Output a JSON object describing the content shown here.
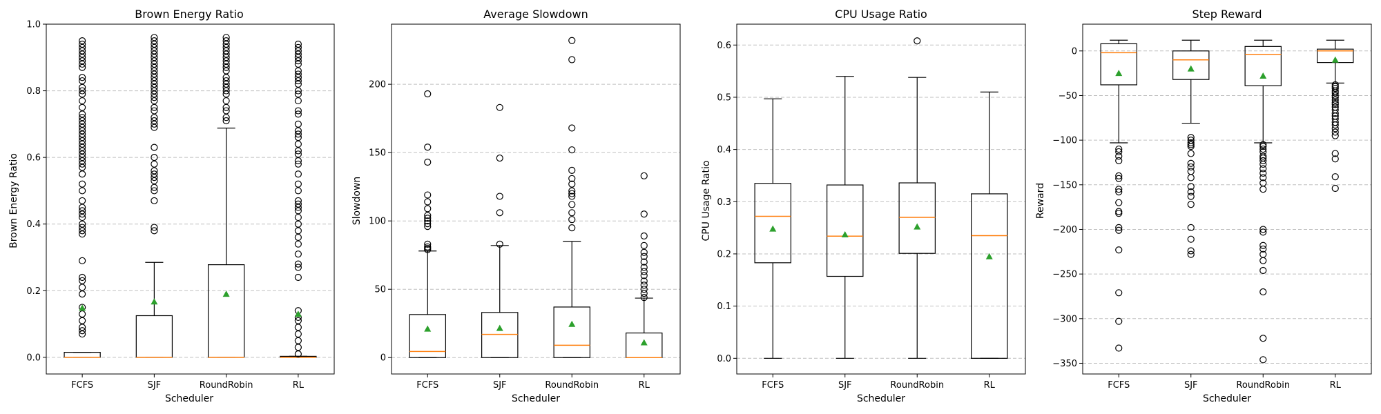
{
  "colors": {
    "median": "#ff7f0e",
    "mean": "#2ca02c",
    "grid": "#b0b0b0",
    "box": "#000000"
  },
  "chart_data": [
    {
      "type": "boxplot",
      "title": "Brown Energy Ratio",
      "xlabel": "Scheduler",
      "ylabel": "Brown Energy Ratio",
      "categories": [
        "FCFS",
        "SJF",
        "RoundRobin",
        "RL"
      ],
      "ylim": [
        -0.05,
        1.0
      ],
      "yticks": [
        0.0,
        0.2,
        0.4,
        0.6,
        0.8,
        1.0
      ],
      "ytick_labels": [
        "0.0",
        "0.2",
        "0.4",
        "0.6",
        "0.8",
        "1.0"
      ],
      "grid": "y-dashed",
      "boxes": [
        {
          "whislo": 0,
          "q1": 0,
          "med": 0,
          "q3": 0.015,
          "whishi": 0.015,
          "mean": 0.148,
          "fliers": [
            0.07,
            0.08,
            0.09,
            0.11,
            0.13,
            0.15,
            0.19,
            0.21,
            0.23,
            0.24,
            0.29,
            0.37,
            0.38,
            0.39,
            0.4,
            0.42,
            0.43,
            0.44,
            0.45,
            0.47,
            0.5,
            0.52,
            0.55,
            0.57,
            0.58,
            0.59,
            0.6,
            0.61,
            0.62,
            0.63,
            0.64,
            0.65,
            0.66,
            0.67,
            0.68,
            0.69,
            0.7,
            0.71,
            0.72,
            0.73,
            0.75,
            0.77,
            0.79,
            0.8,
            0.81,
            0.83,
            0.84,
            0.87,
            0.88,
            0.89,
            0.9,
            0.91,
            0.92,
            0.93,
            0.94,
            0.95
          ]
        },
        {
          "whislo": 0,
          "q1": 0,
          "med": 0,
          "q3": 0.125,
          "whishi": 0.285,
          "mean": 0.167,
          "fliers": [
            0.38,
            0.39,
            0.47,
            0.5,
            0.51,
            0.53,
            0.54,
            0.55,
            0.56,
            0.58,
            0.6,
            0.63,
            0.69,
            0.7,
            0.71,
            0.72,
            0.74,
            0.75,
            0.77,
            0.78,
            0.79,
            0.8,
            0.81,
            0.82,
            0.83,
            0.84,
            0.85,
            0.86,
            0.87,
            0.88,
            0.89,
            0.9,
            0.91,
            0.92,
            0.93,
            0.94,
            0.95,
            0.96
          ]
        },
        {
          "whislo": 0,
          "q1": 0,
          "med": 0,
          "q3": 0.278,
          "whishi": 0.688,
          "mean": 0.19,
          "fliers": [
            0.71,
            0.72,
            0.74,
            0.75,
            0.77,
            0.79,
            0.8,
            0.81,
            0.82,
            0.83,
            0.84,
            0.86,
            0.87,
            0.88,
            0.89,
            0.9,
            0.91,
            0.92,
            0.93,
            0.94,
            0.95,
            0.96
          ]
        },
        {
          "whislo": 0,
          "q1": 0,
          "med": 0,
          "q3": 0.003,
          "whishi": 0.003,
          "mean": 0.13,
          "fliers": [
            0.01,
            0.03,
            0.05,
            0.07,
            0.09,
            0.11,
            0.12,
            0.14,
            0.24,
            0.27,
            0.28,
            0.31,
            0.34,
            0.36,
            0.38,
            0.4,
            0.42,
            0.44,
            0.45,
            0.46,
            0.47,
            0.5,
            0.52,
            0.55,
            0.58,
            0.59,
            0.61,
            0.62,
            0.64,
            0.66,
            0.67,
            0.68,
            0.7,
            0.73,
            0.74,
            0.77,
            0.79,
            0.8,
            0.82,
            0.83,
            0.84,
            0.85,
            0.86,
            0.88,
            0.89,
            0.9,
            0.91,
            0.92,
            0.93,
            0.94
          ]
        }
      ]
    },
    {
      "type": "boxplot",
      "title": "Average Slowdown",
      "xlabel": "Scheduler",
      "ylabel": "Slowdown",
      "categories": [
        "FCFS",
        "SJF",
        "RoundRobin",
        "RL"
      ],
      "ylim": [
        -12,
        244
      ],
      "yticks": [
        0,
        50,
        100,
        150,
        200
      ],
      "ytick_labels": [
        "0",
        "50",
        "100",
        "150",
        "200"
      ],
      "grid": "y-dashed",
      "boxes": [
        {
          "whislo": 0,
          "q1": 0,
          "med": 4.5,
          "q3": 31.5,
          "whishi": 78,
          "mean": 21,
          "fliers": [
            79,
            80,
            81,
            83,
            96,
            98,
            100,
            102,
            104,
            109,
            114,
            119,
            143,
            154,
            193
          ]
        },
        {
          "whislo": 0,
          "q1": 0,
          "med": 17,
          "q3": 33,
          "whishi": 82,
          "mean": 21.5,
          "fliers": [
            83,
            106,
            118,
            146,
            183
          ]
        },
        {
          "whislo": 0,
          "q1": 0,
          "med": 9,
          "q3": 37,
          "whishi": 85,
          "mean": 24.5,
          "fliers": [
            95,
            101,
            106,
            112,
            118,
            120,
            122,
            127,
            131,
            137,
            152,
            168,
            218,
            232
          ]
        },
        {
          "whislo": 0,
          "q1": 0,
          "med": 0,
          "q3": 18,
          "whishi": 43.5,
          "mean": 11,
          "fliers": [
            44,
            47,
            50,
            53,
            56,
            60,
            63,
            66,
            70,
            74,
            77,
            82,
            89,
            105,
            133
          ]
        }
      ]
    },
    {
      "type": "boxplot",
      "title": "CPU Usage Ratio",
      "xlabel": "Scheduler",
      "ylabel": "CPU Usage Ratio",
      "categories": [
        "FCFS",
        "SJF",
        "RoundRobin",
        "RL"
      ],
      "ylim": [
        -0.03,
        0.64
      ],
      "yticks": [
        0.0,
        0.1,
        0.2,
        0.3,
        0.4,
        0.5,
        0.6
      ],
      "ytick_labels": [
        "0.0",
        "0.1",
        "0.2",
        "0.3",
        "0.4",
        "0.5",
        "0.6"
      ],
      "grid": "y-dashed",
      "boxes": [
        {
          "whislo": 0,
          "q1": 0.183,
          "med": 0.272,
          "q3": 0.335,
          "whishi": 0.497,
          "mean": 0.248,
          "fliers": []
        },
        {
          "whislo": 0,
          "q1": 0.157,
          "med": 0.234,
          "q3": 0.332,
          "whishi": 0.54,
          "mean": 0.237,
          "fliers": []
        },
        {
          "whislo": 0,
          "q1": 0.201,
          "med": 0.27,
          "q3": 0.336,
          "whishi": 0.538,
          "mean": 0.252,
          "fliers": [
            0.608
          ]
        },
        {
          "whislo": 0,
          "q1": 0,
          "med": 0.235,
          "q3": 0.315,
          "whishi": 0.51,
          "mean": 0.195,
          "fliers": []
        }
      ]
    },
    {
      "type": "boxplot",
      "title": "Step Reward",
      "xlabel": "Scheduler",
      "ylabel": "Reward",
      "categories": [
        "FCFS",
        "SJF",
        "RoundRobin",
        "RL"
      ],
      "ylim": [
        -362,
        30
      ],
      "yticks": [
        0,
        -50,
        -100,
        -150,
        -200,
        -250,
        -300,
        -350
      ],
      "ytick_labels": [
        "0",
        "−50",
        "−100",
        "−150",
        "−200",
        "−250",
        "−300",
        "−350"
      ],
      "grid": "y-dashed",
      "boxes": [
        {
          "whislo": -103,
          "q1": -38,
          "med": -2,
          "q3": 8,
          "whishi": 12,
          "mean": -25,
          "fliers": [
            -110,
            -113,
            -118,
            -123,
            -140,
            -143,
            -155,
            -158,
            -170,
            -180,
            -182,
            -198,
            -201,
            -223,
            -271,
            -303,
            -333
          ]
        },
        {
          "whislo": -81,
          "q1": -32,
          "med": -10,
          "q3": 0,
          "whishi": 12,
          "mean": -20,
          "fliers": [
            -97,
            -100,
            -103,
            -105,
            -107,
            -115,
            -126,
            -130,
            -135,
            -142,
            -152,
            -158,
            -163,
            -172,
            -198,
            -211,
            -224,
            -228
          ]
        },
        {
          "whislo": -103,
          "q1": -39,
          "med": -4,
          "q3": 5,
          "whishi": 12,
          "mean": -28,
          "fliers": [
            -105,
            -107,
            -110,
            -113,
            -118,
            -120,
            -123,
            -127,
            -132,
            -137,
            -142,
            -148,
            -155,
            -200,
            -203,
            -218,
            -222,
            -228,
            -235,
            -246,
            -270,
            -322,
            -346
          ]
        },
        {
          "whislo": -36,
          "q1": -13,
          "med": 0,
          "q3": 2,
          "whishi": 12,
          "mean": -10,
          "fliers": [
            -38,
            -40,
            -42,
            -45,
            -47,
            -50,
            -52,
            -55,
            -58,
            -60,
            -63,
            -66,
            -70,
            -73,
            -76,
            -80,
            -83,
            -87,
            -91,
            -95,
            -115,
            -121,
            -141,
            -154
          ]
        }
      ]
    }
  ]
}
